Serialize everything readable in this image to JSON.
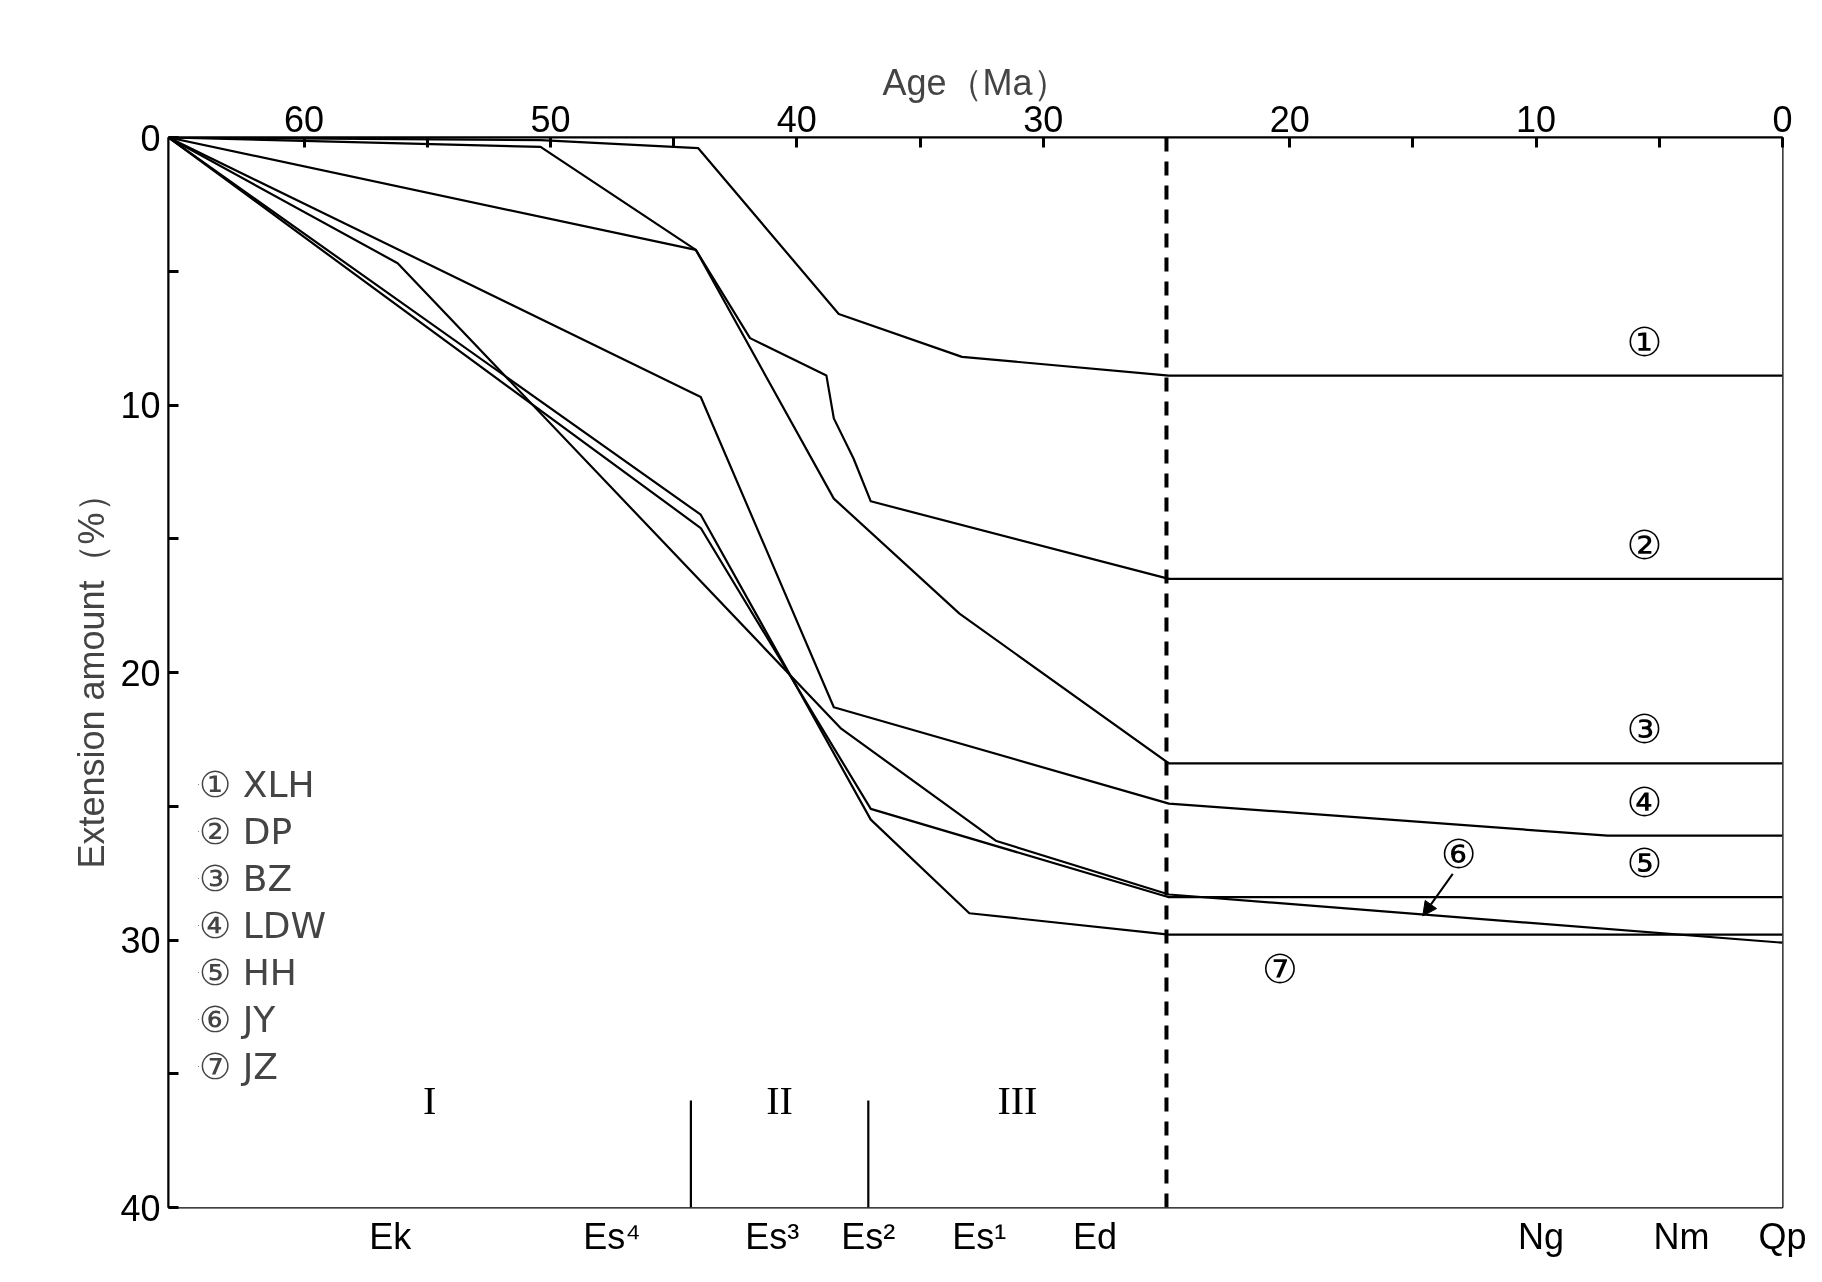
{
  "chart_data": {
    "type": "line",
    "xlabel": "Age（Ma）",
    "ylabel": "Extension amount（%）",
    "xlim": [
      65.5,
      0
    ],
    "xticks": [
      60,
      {
        "value": 55,
        "label": null
      },
      50,
      {
        "value": 45,
        "label": null
      },
      40,
      {
        "value": 35,
        "label": null
      },
      30,
      {
        "value": 25,
        "label": null
      },
      20,
      {
        "value": 15,
        "label": null
      },
      10,
      {
        "value": 5,
        "label": null
      },
      0
    ],
    "ylim": [
      40,
      0
    ],
    "yticks": [
      0,
      {
        "value": 5,
        "label": null
      },
      10,
      {
        "value": 15,
        "label": null
      },
      20,
      {
        "value": 25,
        "label": null
      },
      30,
      {
        "value": 35,
        "label": null
      },
      40
    ],
    "legend": "bottom left",
    "series": [
      {
        "name": "① XLH",
        "color": "#000000",
        "x": [
          65.5,
          50.4,
          44.0,
          38.3,
          33.3,
          24.9,
          0
        ],
        "values": [
          0,
          0.1,
          0.4,
          6.6,
          8.2,
          8.9,
          8.9
        ]
      },
      {
        "name": "② DP",
        "color": "#000000",
        "x": [
          65.5,
          44.1,
          41.9,
          38.8,
          38.5,
          37.7,
          37.0,
          24.9,
          0
        ],
        "values": [
          0,
          4.2,
          7.5,
          8.9,
          10.5,
          12.0,
          13.6,
          16.5,
          16.5
        ]
      },
      {
        "name": "③ BZ",
        "color": "#000000",
        "x": [
          65.5,
          50.4,
          44.1,
          38.5,
          33.4,
          24.9,
          0
        ],
        "values": [
          0,
          0.35,
          4.2,
          13.5,
          17.8,
          23.4,
          23.4
        ]
      },
      {
        "name": "④ LDW",
        "color": "#000000",
        "x": [
          65.5,
          43.9,
          38.5,
          24.9,
          7.1,
          0
        ],
        "values": [
          0,
          9.7,
          21.3,
          24.9,
          26.1,
          26.1
        ]
      },
      {
        "name": "⑤ HH",
        "color": "#000000",
        "x": [
          65.5,
          43.9,
          37.0,
          24.9,
          0
        ],
        "values": [
          0,
          14.6,
          25.1,
          28.4,
          28.4
        ]
      },
      {
        "name": "⑥ JY",
        "color": "#000000",
        "x": [
          65.5,
          56.2,
          38.2,
          31.9,
          24.9,
          0
        ],
        "values": [
          0,
          4.7,
          22.1,
          26.3,
          28.3,
          30.1
        ]
      },
      {
        "name": "⑦ JZ",
        "color": "#000000",
        "x": [
          65.5,
          43.9,
          37.0,
          33.0,
          24.9,
          0
        ],
        "values": [
          0,
          14.1,
          25.5,
          29.0,
          29.8,
          29.8
        ]
      },
      {
        "color": "#000000",
        "x": [
          44.3,
          44.3
        ],
        "values": [
          36.0,
          40
        ]
      },
      {
        "color": "#000000",
        "x": [
          37.1,
          37.1
        ],
        "values": [
          36.0,
          40
        ]
      }
    ],
    "ref_lines": [
      {
        "axis": "x",
        "value": 25,
        "line_style": "dashed",
        "color": "#000000"
      }
    ],
    "bands": [
      {
        "axis": "x",
        "from": 65.5,
        "to": 44.3,
        "label": "I",
        "color": "#ffffff"
      },
      {
        "axis": "x",
        "from": 44.3,
        "to": 37.1,
        "label": "II",
        "color": "#ffffff"
      },
      {
        "axis": "x",
        "from": 37.1,
        "to": 25,
        "label": "III",
        "color": "#ffffff"
      },
      {
        "axis": "x",
        "from": 25,
        "to": 0,
        "label": null,
        "color": "#ffffff"
      }
    ],
    "annotations": [
      {
        "text": "①",
        "x": 5.6,
        "y": 8.9
      },
      {
        "text": "②",
        "x": 5.6,
        "y": 16.5
      },
      {
        "text": "③",
        "x": 5.6,
        "y": 23.4
      },
      {
        "text": "④",
        "x": 5.6,
        "y": 26.1
      },
      {
        "text": "⑤",
        "x": 5.6,
        "y": 28.4
      },
      {
        "text": "⑦",
        "x": 20.4,
        "y": 29.8
      },
      {
        "text": "⑥",
        "x": 14.6,
        "y": 29.1
      },
      {
        "text": "Ek",
        "x": 56.5,
        "y": 40
      },
      {
        "text": "Es⁴",
        "x": 47.5,
        "y": 40
      },
      {
        "text": "Es³",
        "x": 41.0,
        "y": 40
      },
      {
        "text": "Es²",
        "x": 37.1,
        "y": 40
      },
      {
        "text": "Es¹",
        "x": 32.6,
        "y": 40
      },
      {
        "text": "Ed",
        "x": 27.9,
        "y": 40
      },
      {
        "text": "Ng",
        "x": 9.8,
        "y": 40
      },
      {
        "text": "Nm",
        "x": 4.1,
        "y": 40
      },
      {
        "text": "Qp",
        "x": 0,
        "y": 40
      }
    ]
  }
}
